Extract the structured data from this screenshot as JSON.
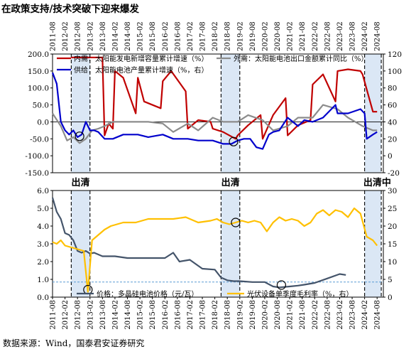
{
  "figure": {
    "title": "在政策支持/技术突破下迎来爆发",
    "source": "数据来源：Wind，国泰君安证券研究"
  },
  "chart_data": [
    {
      "type": "line",
      "x_ticks": [
        "2011-08",
        "2012-02",
        "2012-08",
        "2013-02",
        "2013-08",
        "2014-02",
        "2014-08",
        "2015-02",
        "2015-08",
        "2016-02",
        "2016-08",
        "2017-02",
        "2017-08",
        "2018-02",
        "2018-08",
        "2019-02",
        "2019-08",
        "2020-02",
        "2020-08",
        "2021-02",
        "2021-08",
        "2022-02",
        "2022-08",
        "2023-02",
        "2023-08",
        "2024-02",
        "2024-08"
      ],
      "ylim_left": [
        -150,
        200
      ],
      "yticks_left": [
        "200.0",
        "150.0",
        "100.0",
        "50.0",
        "0.0",
        "-50.0",
        "-100.0",
        "-150.0"
      ],
      "ylim_right": [
        -20,
        120
      ],
      "yticks_right": [
        "120",
        "100",
        "80",
        "60",
        "40",
        "20",
        "0",
        "-20"
      ],
      "shaded": [
        [
          "2012-05",
          "2013-02"
        ],
        [
          "2018-05",
          "2019-02"
        ],
        [
          "2024-02",
          "2024-10"
        ]
      ],
      "shade_labels": [
        "出清",
        "出清",
        "出清中"
      ],
      "series": [
        {
          "name": "内需：太阳能发电新增容量累计增速（%）",
          "axis": "left",
          "color": "#c00000",
          "x": [
            "2012-05",
            "2013-08",
            "2013-09",
            "2013-11",
            "2014-01",
            "2014-02",
            "2014-06",
            "2014-12",
            "2015-01",
            "2015-04",
            "2015-12",
            "2016-01",
            "2016-05",
            "2016-12",
            "2017-01",
            "2017-06",
            "2017-12",
            "2018-01",
            "2018-06",
            "2018-12",
            "2019-01",
            "2019-06",
            "2019-12",
            "2020-01",
            "2020-06",
            "2020-12",
            "2021-01",
            "2021-06",
            "2021-12",
            "2022-01",
            "2022-06",
            "2022-12",
            "2023-01",
            "2023-06",
            "2023-12",
            "2024-01",
            "2024-06",
            "2024-08"
          ],
          "y": [
            190,
            190,
            -40,
            -5,
            -20,
            150,
            130,
            25,
            130,
            60,
            40,
            120,
            150,
            90,
            -20,
            5,
            0,
            -20,
            -30,
            -50,
            -40,
            -10,
            20,
            -50,
            20,
            70,
            -40,
            -10,
            5,
            110,
            140,
            60,
            150,
            155,
            150,
            140,
            30,
            30
          ]
        },
        {
          "name": "外需：太阳能电池出口金额累计同比（%）",
          "axis": "right",
          "color": "#8c8c8c",
          "x": [
            "2011-08",
            "2011-12",
            "2012-03",
            "2012-06",
            "2012-09",
            "2012-12",
            "2013-03",
            "2013-06",
            "2013-09",
            "2014-01",
            "2014-06",
            "2015-01",
            "2015-06",
            "2016-01",
            "2016-06",
            "2017-01",
            "2017-06",
            "2018-01",
            "2018-06",
            "2019-01",
            "2019-06",
            "2020-01",
            "2020-06",
            "2021-01",
            "2021-06",
            "2022-01",
            "2022-06",
            "2023-01",
            "2023-06",
            "2024-01",
            "2024-06",
            "2024-08"
          ],
          "y": [
            50,
            35,
            18,
            22,
            15,
            20,
            30,
            32,
            35,
            40,
            40,
            40,
            40,
            38,
            28,
            38,
            30,
            45,
            40,
            40,
            48,
            42,
            30,
            35,
            45,
            45,
            60,
            55,
            45,
            35,
            30,
            30
          ]
        },
        {
          "name": "供给：太阳能电池产量累计增速（%，右）",
          "axis": "right",
          "color": "#0000cc",
          "x": [
            "2011-08",
            "2011-10",
            "2011-12",
            "2012-02",
            "2012-04",
            "2012-06",
            "2012-08",
            "2012-10",
            "2012-12",
            "2013-02",
            "2013-04",
            "2013-06",
            "2013-09",
            "2014-01",
            "2014-06",
            "2015-01",
            "2015-06",
            "2016-01",
            "2016-06",
            "2017-01",
            "2017-06",
            "2018-01",
            "2018-06",
            "2018-10",
            "2019-01",
            "2019-04",
            "2019-07",
            "2019-10",
            "2020-01",
            "2020-04",
            "2020-06",
            "2020-09",
            "2021-01",
            "2021-06",
            "2021-09",
            "2022-01",
            "2022-06",
            "2022-12",
            "2023-01",
            "2023-06",
            "2023-12",
            "2024-02",
            "2024-03",
            "2024-06",
            "2024-08"
          ],
          "y": [
            98,
            85,
            40,
            30,
            25,
            30,
            22,
            25,
            40,
            30,
            30,
            28,
            20,
            20,
            25,
            25,
            22,
            25,
            20,
            20,
            18,
            18,
            14,
            14,
            18,
            20,
            20,
            10,
            8,
            25,
            28,
            30,
            45,
            35,
            42,
            40,
            45,
            60,
            50,
            50,
            55,
            50,
            20,
            25,
            28
          ]
        }
      ],
      "markers": [
        [
          "2012-09",
          -42.5
        ],
        [
          "2018-11",
          -58.2
        ]
      ]
    },
    {
      "type": "line",
      "x_ticks": [
        "2011-08",
        "2012-02",
        "2012-08",
        "2013-02",
        "2013-08",
        "2014-02",
        "2014-08",
        "2015-02",
        "2015-08",
        "2016-02",
        "2016-08",
        "2017-02",
        "2017-08",
        "2018-02",
        "2018-08",
        "2019-02",
        "2019-08",
        "2020-02",
        "2020-08",
        "2021-02",
        "2021-08",
        "2022-02",
        "2022-08",
        "2023-02",
        "2023-08",
        "2024-02",
        "2024-08"
      ],
      "ylim_left": [
        0,
        6
      ],
      "yticks_left": [
        "6.0",
        "5.0",
        "4.0",
        "3.0",
        "2.0",
        "1.0",
        "0.0"
      ],
      "ylim_right": [
        0,
        30
      ],
      "yticks_right": [
        "30",
        "25",
        "20",
        "15",
        "10",
        "5",
        "0"
      ],
      "reference_line": 0.85,
      "shaded": [
        [
          "2012-05",
          "2013-02"
        ],
        [
          "2018-05",
          "2019-02"
        ],
        [
          "2024-02",
          "2024-10"
        ]
      ],
      "series": [
        {
          "name": "价格：多晶硅电池价格（元/瓦）",
          "axis": "left",
          "color": "#44546a",
          "x": [
            "2011-08",
            "2011-10",
            "2011-12",
            "2012-02",
            "2012-04",
            "2012-06",
            "2012-08",
            "2012-10",
            "2012-12",
            "2013-02",
            "2013-04",
            "2013-08",
            "2014-02",
            "2014-08",
            "2015-02",
            "2015-08",
            "2016-02",
            "2016-06",
            "2016-09",
            "2017-02",
            "2017-08",
            "2018-02",
            "2018-05",
            "2018-08",
            "2018-11",
            "2019-02",
            "2019-08",
            "2020-02",
            "2020-06",
            "2020-09",
            "2021-02",
            "2021-06",
            "2021-09",
            "2022-02",
            "2022-08",
            "2023-02",
            "2023-05"
          ],
          "y": [
            5.6,
            4.8,
            4.4,
            3.6,
            3.5,
            3.2,
            2.6,
            2.5,
            2.6,
            2.45,
            2.5,
            2.3,
            2.3,
            2.2,
            2.2,
            2.2,
            2.2,
            2.5,
            2.0,
            2.1,
            1.6,
            1.55,
            1.1,
            0.95,
            0.9,
            0.9,
            0.85,
            0.85,
            0.6,
            0.55,
            0.6,
            0.65,
            0.7,
            0.8,
            1.05,
            1.3,
            1.25
          ]
        },
        {
          "name": "光伏设备单季度毛利率（%，右）",
          "axis": "right",
          "color": "#ffc000",
          "x": [
            "2011-08",
            "2011-10",
            "2011-12",
            "2012-02",
            "2012-05",
            "2012-08",
            "2012-11",
            "2013-01",
            "2013-03",
            "2013-06",
            "2013-09",
            "2013-12",
            "2014-06",
            "2014-12",
            "2015-06",
            "2015-12",
            "2016-06",
            "2016-12",
            "2017-06",
            "2017-12",
            "2018-03",
            "2018-06",
            "2018-09",
            "2018-12",
            "2019-03",
            "2019-06",
            "2019-09",
            "2019-12",
            "2020-03",
            "2020-06",
            "2020-09",
            "2020-12",
            "2021-03",
            "2021-06",
            "2021-09",
            "2021-12",
            "2022-03",
            "2022-06",
            "2022-09",
            "2022-12",
            "2023-03",
            "2023-06",
            "2023-09",
            "2023-12",
            "2024-03",
            "2024-06",
            "2024-08"
          ],
          "y": [
            15.5,
            15.0,
            16.0,
            14.5,
            14.0,
            13.5,
            13.0,
            1.5,
            16.0,
            17.5,
            19.0,
            20.0,
            21.0,
            21.0,
            22.0,
            22.0,
            22.0,
            22.5,
            21.0,
            21.5,
            22.0,
            21.0,
            20.5,
            21.0,
            21.5,
            21.0,
            21.5,
            21.0,
            18.5,
            21.0,
            22.5,
            21.5,
            22.0,
            21.5,
            20.0,
            21.0,
            23.5,
            24.5,
            23.0,
            24.5,
            24.0,
            22.5,
            25.0,
            23.5,
            17.0,
            16.0,
            14.5
          ]
        }
      ],
      "markers": [
        [
          "2013-01",
          0.42
        ],
        [
          "2018-12",
          4.2
        ],
        [
          "2020-10",
          0.68
        ]
      ]
    }
  ]
}
